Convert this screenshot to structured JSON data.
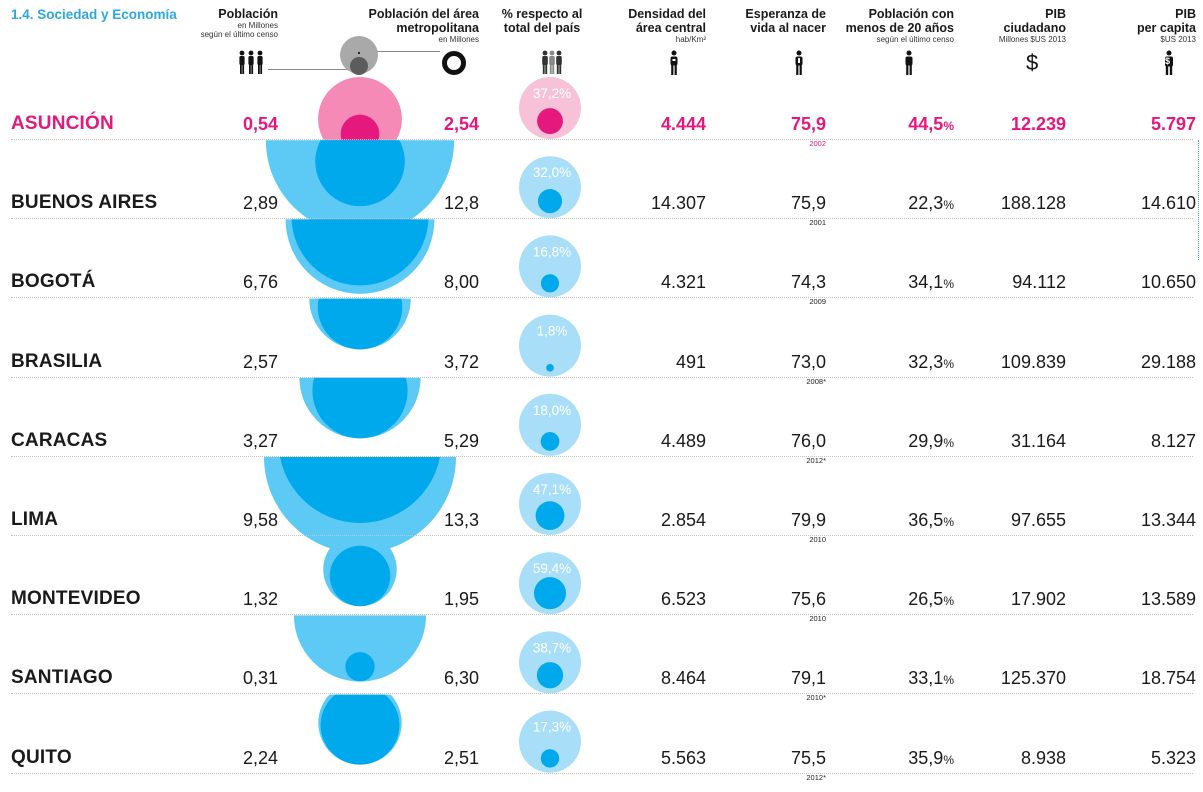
{
  "title": "1.4. Sociedad y Economía",
  "headers": {
    "poblacion": {
      "label": "Población",
      "sub1": "en Millones",
      "sub2": "según el último censo"
    },
    "metro": {
      "label1": "Población del área",
      "label2": "metropolitana",
      "sub": "en Millones"
    },
    "pct": {
      "label1": "% respecto al",
      "label2": "total del país"
    },
    "densidad": {
      "label1": "Densidad del",
      "label2": "área central",
      "sub": "hab/Km²"
    },
    "esperanza": {
      "label1": "Esperanza de",
      "label2": "vida al nacer"
    },
    "menores": {
      "label1": "Población con",
      "label2": "menos de 20 años",
      "sub": "según el último censo"
    },
    "pib": {
      "label1": "PIB",
      "label2": "ciudadano",
      "sub": "Millones $US 2013",
      "icon_text": "$"
    },
    "pibpc": {
      "label1": "PIB",
      "label2": "per capita",
      "sub": "$US 2013",
      "icon_text": "$"
    }
  },
  "colors": {
    "accent": "#e5197d",
    "accent_light": "#f48ab5",
    "accent_pale": "#f7c2d8",
    "blue": "#00a8ec",
    "blue_mid": "#5ccaf5",
    "blue_pale": "#a9def8",
    "title": "#29a9e0"
  },
  "rows": [
    {
      "city": "ASUNCIÓN",
      "poblacion": "0,54",
      "metro": "2,54",
      "pct": "37,2%",
      "pct_value": 37.2,
      "densidad": "4.444",
      "esperanza": "75,9",
      "year": "2002",
      "menores": "44,5",
      "pct_sign": "%",
      "pib": "12.239",
      "pibpc": "5.797",
      "highlight": true
    },
    {
      "city": "BUENOS AIRES",
      "poblacion": "2,89",
      "metro": "12,8",
      "pct": "32,0%",
      "pct_value": 32.0,
      "densidad": "14.307",
      "esperanza": "75,9",
      "year": "2001",
      "menores": "22,3",
      "pct_sign": "%",
      "pib": "188.128",
      "pibpc": "14.610"
    },
    {
      "city": "BOGOTÁ",
      "poblacion": "6,76",
      "metro": "8,00",
      "pct": "16,8%",
      "pct_value": 16.8,
      "densidad": "4.321",
      "esperanza": "74,3",
      "year": "2009",
      "menores": "34,1",
      "pct_sign": "%",
      "pib": "94.112",
      "pibpc": "10.650"
    },
    {
      "city": "BRASILIA",
      "poblacion": "2,57",
      "metro": "3,72",
      "pct": "1,8%",
      "pct_value": 1.8,
      "densidad": "491",
      "esperanza": "73,0",
      "year": "2008*",
      "menores": "32,3",
      "pct_sign": "%",
      "pib": "109.839",
      "pibpc": "29.188"
    },
    {
      "city": "CARACAS",
      "poblacion": "3,27",
      "metro": "5,29",
      "pct": "18,0%",
      "pct_value": 18.0,
      "densidad": "4.489",
      "esperanza": "76,0",
      "year": "2012*",
      "menores": "29,9",
      "pct_sign": "%",
      "pib": "31.164",
      "pibpc": "8.127"
    },
    {
      "city": "LIMA",
      "poblacion": "9,58",
      "metro": "13,3",
      "pct": "47,1%",
      "pct_value": 47.1,
      "densidad": "2.854",
      "esperanza": "79,9",
      "year": "2010",
      "menores": "36,5",
      "pct_sign": "%",
      "pib": "97.655",
      "pibpc": "13.344"
    },
    {
      "city": "MONTEVIDEO",
      "poblacion": "1,32",
      "metro": "1,95",
      "pct": "59,4%",
      "pct_value": 59.4,
      "densidad": "6.523",
      "esperanza": "75,6",
      "year": "2010",
      "menores": "26,5",
      "pct_sign": "%",
      "pib": "17.902",
      "pibpc": "13.589"
    },
    {
      "city": "SANTIAGO",
      "poblacion": "0,31",
      "metro": "6,30",
      "pct": "38,7%",
      "pct_value": 38.7,
      "densidad": "8.464",
      "esperanza": "79,1",
      "year": "2010*",
      "menores": "33,1",
      "pct_sign": "%",
      "pib": "125.370",
      "pibpc": "18.754"
    },
    {
      "city": "QUITO",
      "poblacion": "2,24",
      "metro": "2,51",
      "pct": "17,3%",
      "pct_value": 17.3,
      "densidad": "5.563",
      "esperanza": "75,5",
      "year": "2012*",
      "menores": "35,9",
      "pct_sign": "%",
      "pib": "8.938",
      "pibpc": "5.323"
    }
  ],
  "chart_data": {
    "type": "table",
    "title": "1.4. Sociedad y Economía",
    "columns": [
      "Población (en Millones)",
      "Población del área metropolitana (en Millones)",
      "% respecto al total del país",
      "Densidad del área central (hab/Km²)",
      "Esperanza de vida al nacer",
      "Población con menos de 20 años",
      "PIB ciudadano (Millones $US 2013)",
      "PIB per capita ($US 2013)"
    ],
    "categories": [
      "ASUNCIÓN",
      "BUENOS AIRES",
      "BOGOTÁ",
      "BRASILIA",
      "CARACAS",
      "LIMA",
      "MONTEVIDEO",
      "SANTIAGO",
      "QUITO"
    ],
    "series": [
      {
        "name": "Población",
        "values": [
          0.54,
          2.89,
          6.76,
          2.57,
          3.27,
          9.58,
          1.32,
          0.31,
          2.24
        ]
      },
      {
        "name": "Población del área metropolitana",
        "values": [
          2.54,
          12.8,
          8.0,
          3.72,
          5.29,
          13.3,
          1.95,
          6.3,
          2.51
        ]
      },
      {
        "name": "% respecto al total del país",
        "values": [
          37.2,
          32.0,
          16.8,
          1.8,
          18.0,
          47.1,
          59.4,
          38.7,
          17.3
        ]
      },
      {
        "name": "Densidad del área central",
        "values": [
          4444,
          14307,
          4321,
          491,
          4489,
          2854,
          6523,
          8464,
          5563
        ]
      },
      {
        "name": "Esperanza de vida al nacer",
        "values": [
          75.9,
          75.9,
          74.3,
          73.0,
          76.0,
          79.9,
          75.6,
          79.1,
          75.5
        ]
      },
      {
        "name": "Población con menos de 20 años",
        "values": [
          44.5,
          22.3,
          34.1,
          32.3,
          29.9,
          36.5,
          26.5,
          33.1,
          35.9
        ]
      },
      {
        "name": "PIB ciudadano",
        "values": [
          12239,
          188128,
          94112,
          109839,
          31164,
          97655,
          17902,
          125370,
          8938
        ]
      },
      {
        "name": "PIB per capita",
        "values": [
          5797,
          14610,
          10650,
          29188,
          8127,
          13344,
          13589,
          18754,
          5323
        ]
      }
    ]
  }
}
